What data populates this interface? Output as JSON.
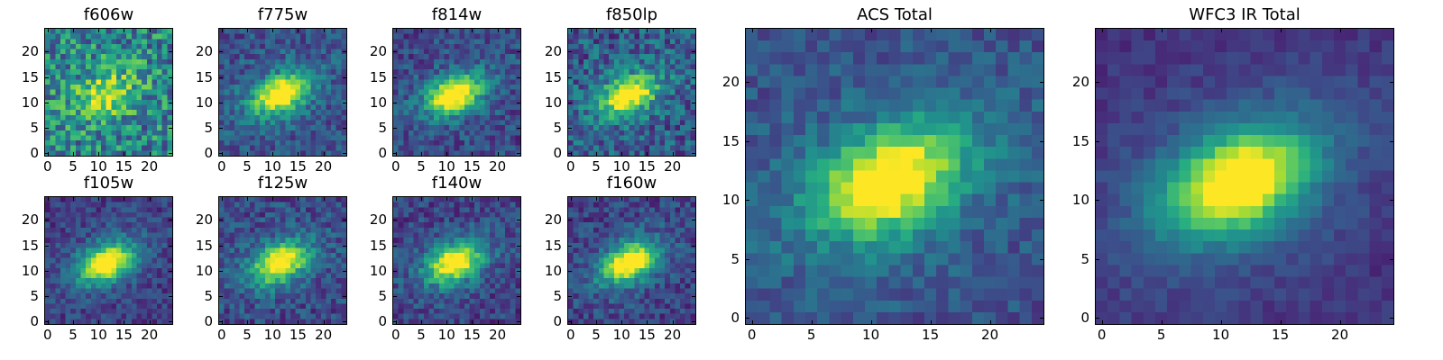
{
  "figure": {
    "panels": [
      {
        "id": "f606w",
        "title": "f606w",
        "noise": 0.55,
        "peak": 0.8,
        "bg": 0.45
      },
      {
        "id": "f775w",
        "title": "f775w",
        "noise": 0.3,
        "peak": 1.0,
        "bg": 0.25
      },
      {
        "id": "f814w",
        "title": "f814w",
        "noise": 0.3,
        "peak": 1.0,
        "bg": 0.22
      },
      {
        "id": "f850lp",
        "title": "f850lp",
        "noise": 0.4,
        "peak": 1.0,
        "bg": 0.28
      },
      {
        "id": "f105w",
        "title": "f105w",
        "noise": 0.25,
        "peak": 1.0,
        "bg": 0.18
      },
      {
        "id": "f125w",
        "title": "f125w",
        "noise": 0.3,
        "peak": 0.95,
        "bg": 0.22
      },
      {
        "id": "f140w",
        "title": "f140w",
        "noise": 0.28,
        "peak": 0.95,
        "bg": 0.2
      },
      {
        "id": "f160w",
        "title": "f160w",
        "noise": 0.28,
        "peak": 1.0,
        "bg": 0.2
      },
      {
        "id": "acs-total",
        "title": "ACS Total",
        "noise": 0.22,
        "peak": 1.0,
        "bg": 0.25
      },
      {
        "id": "wfc3-ir-total",
        "title": "WFC3 IR Total",
        "noise": 0.12,
        "peak": 1.0,
        "bg": 0.15
      }
    ]
  },
  "chart_data": {
    "type": "heatmap",
    "colormap": "viridis",
    "grid_size": 25,
    "source_center": {
      "x": 11.5,
      "y": 11.5
    },
    "source_position_angle_deg": -25,
    "panels": [
      {
        "title": "f606w",
        "xticks": [
          0,
          5,
          10,
          15,
          20
        ],
        "yticks": [
          0,
          5,
          10,
          15,
          20
        ],
        "xlim": [
          0,
          25
        ],
        "ylim": [
          0,
          25
        ]
      },
      {
        "title": "f775w",
        "xticks": [
          0,
          5,
          10,
          15,
          20
        ],
        "yticks": [
          0,
          5,
          10,
          15,
          20
        ],
        "xlim": [
          0,
          25
        ],
        "ylim": [
          0,
          25
        ]
      },
      {
        "title": "f814w",
        "xticks": [
          0,
          5,
          10,
          15,
          20
        ],
        "yticks": [
          0,
          5,
          10,
          15,
          20
        ],
        "xlim": [
          0,
          25
        ],
        "ylim": [
          0,
          25
        ]
      },
      {
        "title": "f850lp",
        "xticks": [
          0,
          5,
          10,
          15,
          20
        ],
        "yticks": [
          0,
          5,
          10,
          15,
          20
        ],
        "xlim": [
          0,
          25
        ],
        "ylim": [
          0,
          25
        ]
      },
      {
        "title": "f105w",
        "xticks": [
          0,
          5,
          10,
          15,
          20
        ],
        "yticks": [
          0,
          5,
          10,
          15,
          20
        ],
        "xlim": [
          0,
          25
        ],
        "ylim": [
          0,
          25
        ]
      },
      {
        "title": "f125w",
        "xticks": [
          0,
          5,
          10,
          15,
          20
        ],
        "yticks": [
          0,
          5,
          10,
          15,
          20
        ],
        "xlim": [
          0,
          25
        ],
        "ylim": [
          0,
          25
        ]
      },
      {
        "title": "f140w",
        "xticks": [
          0,
          5,
          10,
          15,
          20
        ],
        "yticks": [
          0,
          5,
          10,
          15,
          20
        ],
        "xlim": [
          0,
          25
        ],
        "ylim": [
          0,
          25
        ]
      },
      {
        "title": "f160w",
        "xticks": [
          0,
          5,
          10,
          15,
          20
        ],
        "yticks": [
          0,
          5,
          10,
          15,
          20
        ],
        "xlim": [
          0,
          25
        ],
        "ylim": [
          0,
          25
        ]
      },
      {
        "title": "ACS Total",
        "xticks": [
          0,
          5,
          10,
          15,
          20
        ],
        "yticks": [
          0,
          5,
          10,
          15,
          20
        ],
        "xlim": [
          0,
          25
        ],
        "ylim": [
          0,
          25
        ]
      },
      {
        "title": "WFC3 IR Total",
        "xticks": [
          0,
          5,
          10,
          15,
          20
        ],
        "yticks": [
          0,
          5,
          10,
          15,
          20
        ],
        "xlim": [
          0,
          25
        ],
        "ylim": [
          0,
          25
        ]
      }
    ]
  }
}
